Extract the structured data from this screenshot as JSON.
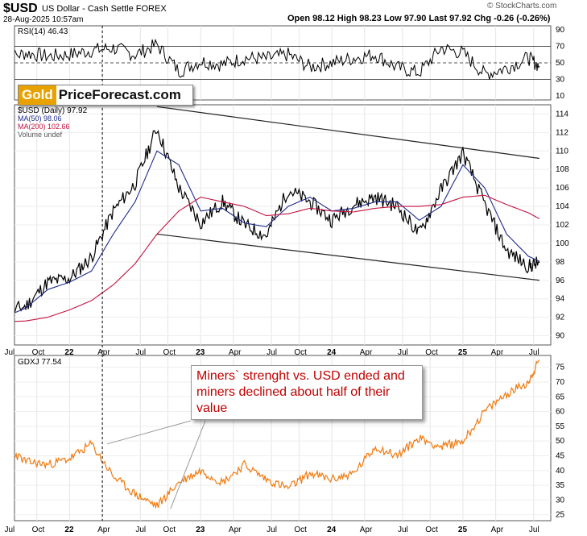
{
  "header": {
    "symbol": "$USD",
    "description": "US Dollar - Cash Settle FOREX",
    "datetime": "28-Aug-2025 10:57am",
    "source": "© StockCharts.com",
    "quote": "Open 98.12  High 98.23  Low 97.90  Last 97.92  Chg -0.26 (-0.26%)"
  },
  "logo": {
    "part1": "Gold",
    "part2": "PriceForecast.com"
  },
  "callout": {
    "text": "Miners` strenght vs. USD ended and miners declined about half of their value"
  },
  "colors": {
    "price": "#000000",
    "ma50": "#1e2a8a",
    "ma200": "#c4123f",
    "gdxj": "#f07a10",
    "callout_text": "#c00000",
    "gold": "#e8a200"
  },
  "chart_data": [
    {
      "type": "line",
      "panel": "rsi",
      "legend": "RSI(14) 46.43",
      "ylim": [
        0,
        100
      ],
      "y_ticks": [
        10,
        30,
        50,
        70,
        90
      ],
      "reference_lines": [
        30,
        50,
        70
      ],
      "x": [
        "2021-07",
        "2021-09",
        "2021-11",
        "2022-01",
        "2022-03",
        "2022-05",
        "2022-07",
        "2022-09",
        "2022-11",
        "2023-01",
        "2023-03",
        "2023-05",
        "2023-07",
        "2023-09",
        "2023-11",
        "2024-01",
        "2024-03",
        "2024-05",
        "2024-07",
        "2024-09",
        "2024-11",
        "2025-01",
        "2025-03",
        "2025-05",
        "2025-07",
        "2025-08"
      ],
      "series": [
        {
          "name": "RSI(14)",
          "values": [
            55,
            62,
            58,
            60,
            65,
            68,
            60,
            72,
            40,
            52,
            48,
            56,
            55,
            60,
            45,
            50,
            56,
            60,
            44,
            38,
            68,
            62,
            36,
            44,
            56,
            46
          ]
        }
      ]
    },
    {
      "type": "line",
      "panel": "usd",
      "legend": [
        "$USD (Daily) 97.92",
        "MA(50) 98.06",
        "MA(200) 102.66",
        "Volume undef"
      ],
      "ylim": [
        89,
        115
      ],
      "y_ticks": [
        90,
        92,
        94,
        96,
        98,
        100,
        102,
        104,
        106,
        108,
        110,
        112,
        114
      ],
      "x": [
        "2021-07",
        "2021-09",
        "2021-11",
        "2022-01",
        "2022-03",
        "2022-05",
        "2022-07",
        "2022-09",
        "2022-11",
        "2023-01",
        "2023-03",
        "2023-05",
        "2023-07",
        "2023-09",
        "2023-11",
        "2024-01",
        "2024-03",
        "2024-05",
        "2024-07",
        "2024-09",
        "2024-11",
        "2025-01",
        "2025-03",
        "2025-05",
        "2025-07",
        "2025-08"
      ],
      "series": [
        {
          "name": "$USD",
          "values": [
            92.5,
            93.2,
            95.8,
            96.2,
            98.5,
            103.5,
            106.5,
            112.5,
            106.0,
            102.2,
            104.5,
            102.0,
            100.8,
            105.8,
            104.5,
            102.5,
            104.2,
            105.0,
            104.0,
            101.0,
            105.8,
            109.8,
            104.2,
            99.2,
            97.5,
            97.9
          ]
        },
        {
          "name": "MA(50)",
          "values": [
            92.0,
            93.0,
            95.0,
            95.8,
            97.0,
            101.0,
            104.5,
            110.0,
            108.5,
            103.5,
            103.8,
            102.2,
            101.8,
            104.0,
            105.0,
            103.5,
            103.8,
            104.5,
            104.5,
            102.5,
            104.0,
            108.5,
            106.0,
            101.0,
            98.6,
            98.06
          ]
        },
        {
          "name": "MA(200)",
          "values": [
            91.5,
            91.6,
            92.0,
            92.8,
            93.8,
            95.5,
            97.8,
            101.0,
            103.5,
            105.0,
            104.5,
            104.0,
            103.0,
            103.2,
            103.8,
            103.5,
            103.4,
            103.8,
            104.0,
            104.0,
            104.2,
            105.0,
            105.2,
            104.2,
            103.3,
            102.66
          ]
        }
      ],
      "trendlines": [
        {
          "from": [
            "2022-09",
            114.8
          ],
          "to": [
            "2025-08",
            109.2
          ]
        },
        {
          "from": [
            "2022-09",
            101.0
          ],
          "to": [
            "2025-08",
            96.0
          ]
        }
      ]
    },
    {
      "type": "line",
      "panel": "gdxj",
      "legend": "GDXJ 77.54",
      "ylim": [
        23,
        79
      ],
      "y_ticks": [
        25,
        30,
        35,
        40,
        45,
        50,
        55,
        60,
        65,
        70,
        75
      ],
      "x": [
        "2021-07",
        "2021-09",
        "2021-11",
        "2022-01",
        "2022-03",
        "2022-05",
        "2022-07",
        "2022-09",
        "2022-11",
        "2023-01",
        "2023-03",
        "2023-05",
        "2023-07",
        "2023-09",
        "2023-11",
        "2024-01",
        "2024-03",
        "2024-05",
        "2024-07",
        "2024-09",
        "2024-11",
        "2025-01",
        "2025-03",
        "2025-05",
        "2025-07",
        "2025-08"
      ],
      "series": [
        {
          "name": "GDXJ",
          "values": [
            48,
            43,
            42,
            44,
            49,
            38,
            32,
            28,
            36,
            40,
            36,
            42,
            37,
            34,
            39,
            37,
            39,
            48,
            45,
            51,
            48,
            50,
            60,
            66,
            70,
            77.54
          ]
        }
      ]
    }
  ],
  "x_axis_labels": [
    "Jul",
    "Oct",
    "22",
    "Apr",
    "Jul",
    "Oct",
    "23",
    "Apr",
    "Jul",
    "Oct",
    "24",
    "Apr",
    "Jul",
    "Oct",
    "25",
    "Apr",
    "Jul"
  ],
  "marker_date": "2022-04"
}
